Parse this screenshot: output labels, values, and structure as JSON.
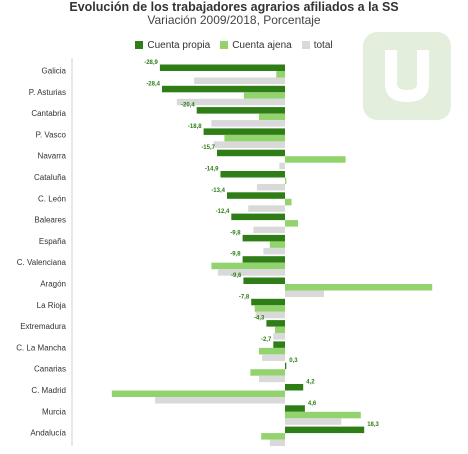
{
  "chart_data": {
    "type": "bar",
    "orientation": "horizontal",
    "title": "Evolución de los trabajadores agrarios afiliados a la SS",
    "subtitle": "Variación 2009/2018, Porcentaje",
    "categories": [
      "Galicia",
      "P. Asturias",
      "Cantabria",
      "P. Vasco",
      "Navarra",
      "Cataluña",
      "C. León",
      "Baleares",
      "España",
      "C. Valenciana",
      "Aragón",
      "La Rioja",
      "Extremadura",
      "C. La Mancha",
      "Canarias",
      "C. Madrid",
      "Murcia",
      "Andalucía"
    ],
    "series": [
      {
        "name": "Cuenta propia",
        "color": "#2e7d17",
        "values": [
          -28.9,
          -28.4,
          -20.4,
          -18.8,
          -15.7,
          -14.9,
          -13.4,
          -12.4,
          -9.8,
          -9.8,
          -9.6,
          -7.8,
          -4.3,
          -2.7,
          0.3,
          4.2,
          4.6,
          18.3
        ],
        "labels": [
          "-28,9",
          "-28,4",
          "-20,4",
          "-18,8",
          "-15,7",
          "-14,9",
          "-13,4",
          "-12,4",
          "-9,8",
          "-9,8",
          "-9,6",
          "-7,8",
          "-4,3",
          "-2,7",
          "0,3",
          "4,2",
          "4,6",
          "18,3"
        ]
      },
      {
        "name": "Cuenta ajena",
        "color": "#92d36e",
        "values": [
          -2,
          -9.5,
          -6,
          -14,
          14,
          0.3,
          1.5,
          3,
          -3.5,
          -17,
          34,
          -7,
          -2.3,
          -6,
          -8,
          -40,
          17.5,
          -5.5
        ]
      },
      {
        "name": "total",
        "color": "#d9d9d9",
        "values": [
          -21,
          -25,
          -17,
          -16.5,
          -1.3,
          -6.5,
          -8.5,
          -7.3,
          -5,
          -15.5,
          9,
          -6.8,
          -2.7,
          -5.3,
          -6,
          -30,
          13,
          -3.5
        ]
      }
    ],
    "xlim": [
      -50,
      40
    ],
    "grid": false,
    "legend_position": "top"
  },
  "legend": {
    "item_0": "Cuenta propia",
    "item_1": "Cuenta ajena",
    "item_2": "total"
  },
  "watermark": {
    "letter": "u",
    "color": "#e3eedc"
  }
}
